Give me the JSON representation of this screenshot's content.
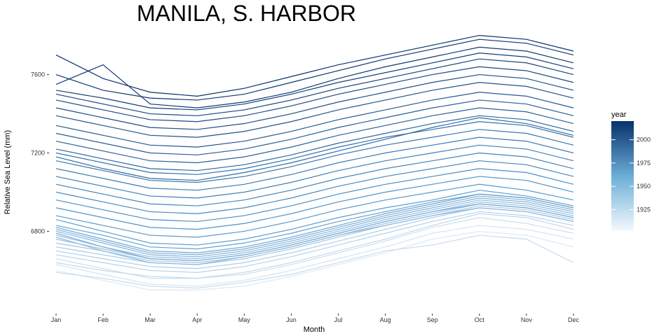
{
  "chart_data": {
    "type": "line",
    "title": "MANILA, S. HARBOR",
    "xlabel": "Month",
    "ylabel": "Relative Sea Level (mm)",
    "categories": [
      "Jan",
      "Feb",
      "Mar",
      "Apr",
      "May",
      "Jun",
      "Jul",
      "Aug",
      "Sep",
      "Oct",
      "Nov",
      "Dec"
    ],
    "ylim": [
      6480,
      7820
    ],
    "yticks": [
      6800,
      7200,
      7600
    ],
    "grid": false,
    "legend": {
      "title": "year",
      "position": "right",
      "type": "colorbar",
      "ticks": [
        1925,
        1950,
        1975,
        2000
      ],
      "range": [
        1902,
        2020
      ]
    },
    "colors": {
      "low": "#dbe9f6",
      "mid": "#4a90c8",
      "high": "#08306b"
    },
    "series": [
      {
        "year": 1902,
        "values": [
          6600,
          6550,
          6500,
          6500,
          6520,
          6570,
          6630,
          6690,
          6760,
          6800,
          6780,
          6720
        ]
      },
      {
        "year": 1905,
        "values": [
          6630,
          6580,
          6530,
          6520,
          6550,
          6600,
          6660,
          6720,
          6790,
          6830,
          6810,
          6760
        ]
      },
      {
        "year": 1908,
        "values": [
          6660,
          6610,
          6560,
          6560,
          6580,
          6630,
          6690,
          6750,
          6820,
          6870,
          6840,
          6790
        ]
      },
      {
        "year": 1911,
        "values": [
          6590,
          6560,
          6520,
          6510,
          6540,
          6580,
          6640,
          6700,
          6730,
          6780,
          6760,
          6640
        ]
      },
      {
        "year": 1914,
        "values": [
          6640,
          6600,
          6570,
          6560,
          6590,
          6640,
          6700,
          6760,
          6830,
          6890,
          6870,
          6810
        ]
      },
      {
        "year": 1917,
        "values": [
          6680,
          6640,
          6600,
          6590,
          6620,
          6670,
          6730,
          6790,
          6850,
          6900,
          6880,
          6830
        ]
      },
      {
        "year": 1920,
        "values": [
          6700,
          6660,
          6620,
          6610,
          6640,
          6690,
          6750,
          6810,
          6870,
          6920,
          6900,
          6850
        ]
      },
      {
        "year": 1923,
        "values": [
          6720,
          6680,
          6640,
          6630,
          6660,
          6710,
          6770,
          6830,
          6880,
          6930,
          6910,
          6860
        ]
      },
      {
        "year": 1926,
        "values": [
          6740,
          6700,
          6650,
          6640,
          6670,
          6720,
          6780,
          6840,
          6890,
          6940,
          6920,
          6870
        ]
      },
      {
        "year": 1929,
        "values": [
          6760,
          6710,
          6660,
          6650,
          6680,
          6730,
          6790,
          6850,
          6900,
          6950,
          6930,
          6880
        ]
      },
      {
        "year": 1932,
        "values": [
          6780,
          6720,
          6670,
          6660,
          6690,
          6740,
          6800,
          6860,
          6910,
          6960,
          6940,
          6890
        ]
      },
      {
        "year": 1935,
        "values": [
          6770,
          6700,
          6640,
          6630,
          6670,
          6720,
          6780,
          6830,
          6880,
          6920,
          6900,
          6850
        ]
      },
      {
        "year": 1938,
        "values": [
          6800,
          6740,
          6680,
          6670,
          6700,
          6750,
          6810,
          6870,
          6920,
          6970,
          6950,
          6900
        ]
      },
      {
        "year": 1941,
        "values": [
          6810,
          6750,
          6690,
          6680,
          6710,
          6760,
          6820,
          6880,
          6930,
          6980,
          6960,
          6910
        ]
      },
      {
        "year": 1944,
        "values": [
          6790,
          6720,
          6660,
          6650,
          6680,
          6730,
          6790,
          6850,
          6900,
          6940,
          6920,
          6870
        ]
      },
      {
        "year": 1947,
        "values": [
          6820,
          6760,
          6700,
          6690,
          6720,
          6770,
          6830,
          6890,
          6940,
          6990,
          6970,
          6920
        ]
      },
      {
        "year": 1950,
        "values": [
          6830,
          6780,
          6720,
          6710,
          6740,
          6790,
          6850,
          6900,
          6950,
          6990,
          6970,
          6920
        ]
      },
      {
        "year": 1953,
        "values": [
          6860,
          6800,
          6740,
          6730,
          6760,
          6810,
          6870,
          6920,
          6960,
          7010,
          6980,
          6930
        ]
      },
      {
        "year": 1956,
        "values": [
          6880,
          6830,
          6780,
          6770,
          6800,
          6850,
          6910,
          6960,
          7000,
          7040,
          7010,
          6960
        ]
      },
      {
        "year": 1959,
        "values": [
          6920,
          6870,
          6820,
          6810,
          6840,
          6890,
          6950,
          7000,
          7040,
          7080,
          7060,
          7000
        ]
      },
      {
        "year": 1962,
        "values": [
          6960,
          6910,
          6860,
          6850,
          6880,
          6930,
          6990,
          7040,
          7080,
          7120,
          7100,
          7040
        ]
      },
      {
        "year": 1965,
        "values": [
          7000,
          6950,
          6900,
          6890,
          6920,
          6970,
          7030,
          7080,
          7120,
          7160,
          7140,
          7080
        ]
      },
      {
        "year": 1968,
        "values": [
          7040,
          6990,
          6940,
          6930,
          6960,
          7010,
          7070,
          7120,
          7160,
          7200,
          7180,
          7120
        ]
      },
      {
        "year": 1971,
        "values": [
          7080,
          7030,
          6980,
          6970,
          7000,
          7050,
          7110,
          7160,
          7200,
          7240,
          7220,
          7160
        ]
      },
      {
        "year": 1974,
        "values": [
          7120,
          7070,
          7020,
          7010,
          7040,
          7090,
          7150,
          7200,
          7240,
          7280,
          7260,
          7200
        ]
      },
      {
        "year": 1977,
        "values": [
          7160,
          7110,
          7060,
          7050,
          7080,
          7130,
          7190,
          7240,
          7280,
          7320,
          7300,
          7240
        ]
      },
      {
        "year": 1980,
        "values": [
          7200,
          7150,
          7100,
          7090,
          7120,
          7170,
          7230,
          7280,
          7320,
          7360,
          7340,
          7280
        ]
      },
      {
        "year": 1983,
        "values": [
          7180,
          7120,
          7070,
          7060,
          7100,
          7150,
          7210,
          7270,
          7330,
          7380,
          7350,
          7290
        ]
      },
      {
        "year": 1986,
        "values": [
          7220,
          7170,
          7120,
          7110,
          7140,
          7190,
          7250,
          7300,
          7350,
          7390,
          7370,
          7310
        ]
      },
      {
        "year": 1989,
        "values": [
          7260,
          7210,
          7160,
          7150,
          7180,
          7230,
          7290,
          7340,
          7390,
          7430,
          7410,
          7350
        ]
      },
      {
        "year": 1992,
        "values": [
          7300,
          7250,
          7200,
          7190,
          7220,
          7270,
          7330,
          7380,
          7430,
          7470,
          7450,
          7390
        ]
      },
      {
        "year": 1995,
        "values": [
          7340,
          7290,
          7240,
          7230,
          7260,
          7310,
          7370,
          7420,
          7470,
          7510,
          7490,
          7430
        ]
      },
      {
        "year": 1998,
        "values": [
          7390,
          7340,
          7290,
          7280,
          7310,
          7360,
          7420,
          7470,
          7520,
          7560,
          7540,
          7480
        ]
      },
      {
        "year": 2001,
        "values": [
          7430,
          7380,
          7330,
          7320,
          7350,
          7400,
          7460,
          7510,
          7560,
          7600,
          7580,
          7520
        ]
      },
      {
        "year": 2004,
        "values": [
          7470,
          7420,
          7370,
          7360,
          7390,
          7440,
          7500,
          7550,
          7600,
          7640,
          7620,
          7560
        ]
      },
      {
        "year": 2007,
        "values": [
          7500,
          7450,
          7400,
          7390,
          7420,
          7470,
          7530,
          7580,
          7630,
          7680,
          7660,
          7600
        ]
      },
      {
        "year": 2010,
        "values": [
          7520,
          7480,
          7430,
          7420,
          7450,
          7500,
          7560,
          7610,
          7660,
          7710,
          7690,
          7630
        ]
      },
      {
        "year": 2013,
        "values": [
          7550,
          7650,
          7450,
          7430,
          7460,
          7510,
          7580,
          7640,
          7690,
          7740,
          7720,
          7660
        ]
      },
      {
        "year": 2016,
        "values": [
          7600,
          7520,
          7480,
          7470,
          7500,
          7560,
          7620,
          7680,
          7730,
          7780,
          7760,
          7700
        ]
      },
      {
        "year": 2019,
        "values": [
          7700,
          7580,
          7510,
          7490,
          7530,
          7590,
          7650,
          7700,
          7750,
          7800,
          7780,
          7720
        ]
      }
    ]
  }
}
